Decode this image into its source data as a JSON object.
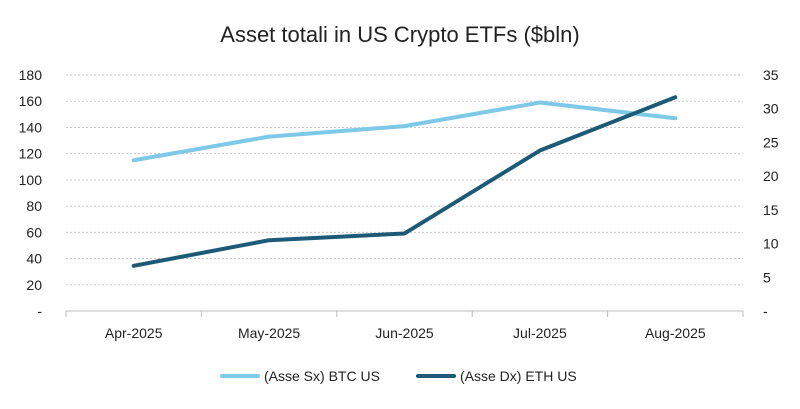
{
  "chart_data": {
    "type": "line",
    "title": "Asset totali in US Crypto ETFs ($bln)",
    "categories": [
      "Apr-2025",
      "May-2025",
      "Jun-2025",
      "Jul-2025",
      "Aug-2025"
    ],
    "y_left": {
      "ylim": [
        0,
        180
      ],
      "ticks": [
        "-",
        "20",
        "40",
        "60",
        "80",
        "100",
        "120",
        "140",
        "160",
        "180"
      ]
    },
    "y_right": {
      "ylim": [
        0,
        35
      ],
      "ticks": [
        "-",
        "5",
        "10",
        "15",
        "20",
        "25",
        "30",
        "35"
      ]
    },
    "series": [
      {
        "name": "(Asse Sx) BTC US",
        "axis": "left",
        "color": "#7ec8e8",
        "values": [
          115,
          133,
          141,
          159,
          147
        ]
      },
      {
        "name": "(Asse Dx) ETH US",
        "axis": "right",
        "color": "#1c5a78",
        "values": [
          6.7,
          10.5,
          11.5,
          23.8,
          31.7
        ]
      }
    ],
    "grid": true,
    "grid_style": "dotted",
    "legend_position": "bottom"
  }
}
